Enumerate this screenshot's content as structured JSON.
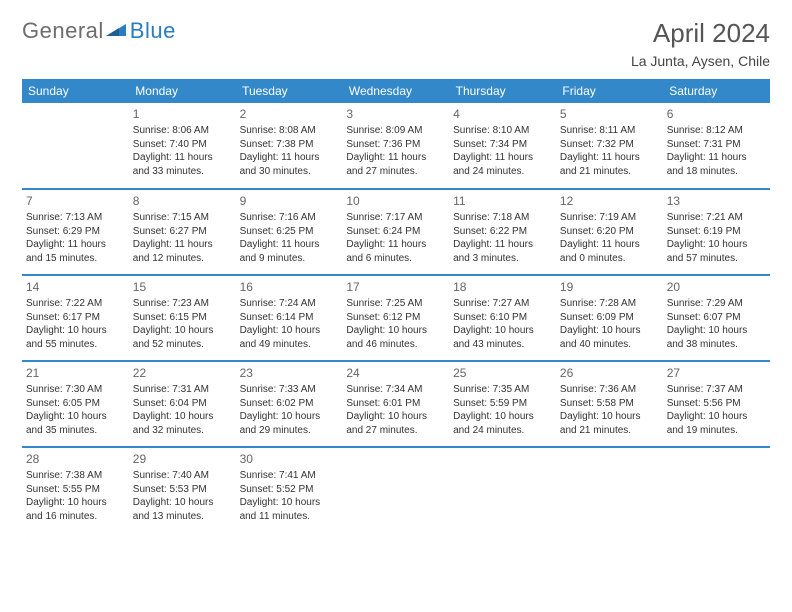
{
  "logo": {
    "general": "General",
    "blue": "Blue"
  },
  "title": "April 2024",
  "location": "La Junta, Aysen, Chile",
  "colors": {
    "header_bg": "#3288c9",
    "header_text": "#ffffff",
    "border": "#3288c9",
    "text": "#333333",
    "daynum": "#666666",
    "logo_gray": "#6d6d6d",
    "logo_blue": "#2a7dc0",
    "background": "#ffffff"
  },
  "weekdays": [
    "Sunday",
    "Monday",
    "Tuesday",
    "Wednesday",
    "Thursday",
    "Friday",
    "Saturday"
  ],
  "cells": [
    [
      {
        "day": "",
        "lines": []
      },
      {
        "day": "1",
        "lines": [
          "Sunrise: 8:06 AM",
          "Sunset: 7:40 PM",
          "Daylight: 11 hours and 33 minutes."
        ]
      },
      {
        "day": "2",
        "lines": [
          "Sunrise: 8:08 AM",
          "Sunset: 7:38 PM",
          "Daylight: 11 hours and 30 minutes."
        ]
      },
      {
        "day": "3",
        "lines": [
          "Sunrise: 8:09 AM",
          "Sunset: 7:36 PM",
          "Daylight: 11 hours and 27 minutes."
        ]
      },
      {
        "day": "4",
        "lines": [
          "Sunrise: 8:10 AM",
          "Sunset: 7:34 PM",
          "Daylight: 11 hours and 24 minutes."
        ]
      },
      {
        "day": "5",
        "lines": [
          "Sunrise: 8:11 AM",
          "Sunset: 7:32 PM",
          "Daylight: 11 hours and 21 minutes."
        ]
      },
      {
        "day": "6",
        "lines": [
          "Sunrise: 8:12 AM",
          "Sunset: 7:31 PM",
          "Daylight: 11 hours and 18 minutes."
        ]
      }
    ],
    [
      {
        "day": "7",
        "lines": [
          "Sunrise: 7:13 AM",
          "Sunset: 6:29 PM",
          "Daylight: 11 hours and 15 minutes."
        ]
      },
      {
        "day": "8",
        "lines": [
          "Sunrise: 7:15 AM",
          "Sunset: 6:27 PM",
          "Daylight: 11 hours and 12 minutes."
        ]
      },
      {
        "day": "9",
        "lines": [
          "Sunrise: 7:16 AM",
          "Sunset: 6:25 PM",
          "Daylight: 11 hours and 9 minutes."
        ]
      },
      {
        "day": "10",
        "lines": [
          "Sunrise: 7:17 AM",
          "Sunset: 6:24 PM",
          "Daylight: 11 hours and 6 minutes."
        ]
      },
      {
        "day": "11",
        "lines": [
          "Sunrise: 7:18 AM",
          "Sunset: 6:22 PM",
          "Daylight: 11 hours and 3 minutes."
        ]
      },
      {
        "day": "12",
        "lines": [
          "Sunrise: 7:19 AM",
          "Sunset: 6:20 PM",
          "Daylight: 11 hours and 0 minutes."
        ]
      },
      {
        "day": "13",
        "lines": [
          "Sunrise: 7:21 AM",
          "Sunset: 6:19 PM",
          "Daylight: 10 hours and 57 minutes."
        ]
      }
    ],
    [
      {
        "day": "14",
        "lines": [
          "Sunrise: 7:22 AM",
          "Sunset: 6:17 PM",
          "Daylight: 10 hours and 55 minutes."
        ]
      },
      {
        "day": "15",
        "lines": [
          "Sunrise: 7:23 AM",
          "Sunset: 6:15 PM",
          "Daylight: 10 hours and 52 minutes."
        ]
      },
      {
        "day": "16",
        "lines": [
          "Sunrise: 7:24 AM",
          "Sunset: 6:14 PM",
          "Daylight: 10 hours and 49 minutes."
        ]
      },
      {
        "day": "17",
        "lines": [
          "Sunrise: 7:25 AM",
          "Sunset: 6:12 PM",
          "Daylight: 10 hours and 46 minutes."
        ]
      },
      {
        "day": "18",
        "lines": [
          "Sunrise: 7:27 AM",
          "Sunset: 6:10 PM",
          "Daylight: 10 hours and 43 minutes."
        ]
      },
      {
        "day": "19",
        "lines": [
          "Sunrise: 7:28 AM",
          "Sunset: 6:09 PM",
          "Daylight: 10 hours and 40 minutes."
        ]
      },
      {
        "day": "20",
        "lines": [
          "Sunrise: 7:29 AM",
          "Sunset: 6:07 PM",
          "Daylight: 10 hours and 38 minutes."
        ]
      }
    ],
    [
      {
        "day": "21",
        "lines": [
          "Sunrise: 7:30 AM",
          "Sunset: 6:05 PM",
          "Daylight: 10 hours and 35 minutes."
        ]
      },
      {
        "day": "22",
        "lines": [
          "Sunrise: 7:31 AM",
          "Sunset: 6:04 PM",
          "Daylight: 10 hours and 32 minutes."
        ]
      },
      {
        "day": "23",
        "lines": [
          "Sunrise: 7:33 AM",
          "Sunset: 6:02 PM",
          "Daylight: 10 hours and 29 minutes."
        ]
      },
      {
        "day": "24",
        "lines": [
          "Sunrise: 7:34 AM",
          "Sunset: 6:01 PM",
          "Daylight: 10 hours and 27 minutes."
        ]
      },
      {
        "day": "25",
        "lines": [
          "Sunrise: 7:35 AM",
          "Sunset: 5:59 PM",
          "Daylight: 10 hours and 24 minutes."
        ]
      },
      {
        "day": "26",
        "lines": [
          "Sunrise: 7:36 AM",
          "Sunset: 5:58 PM",
          "Daylight: 10 hours and 21 minutes."
        ]
      },
      {
        "day": "27",
        "lines": [
          "Sunrise: 7:37 AM",
          "Sunset: 5:56 PM",
          "Daylight: 10 hours and 19 minutes."
        ]
      }
    ],
    [
      {
        "day": "28",
        "lines": [
          "Sunrise: 7:38 AM",
          "Sunset: 5:55 PM",
          "Daylight: 10 hours and 16 minutes."
        ]
      },
      {
        "day": "29",
        "lines": [
          "Sunrise: 7:40 AM",
          "Sunset: 5:53 PM",
          "Daylight: 10 hours and 13 minutes."
        ]
      },
      {
        "day": "30",
        "lines": [
          "Sunrise: 7:41 AM",
          "Sunset: 5:52 PM",
          "Daylight: 10 hours and 11 minutes."
        ]
      },
      {
        "day": "",
        "lines": []
      },
      {
        "day": "",
        "lines": []
      },
      {
        "day": "",
        "lines": []
      },
      {
        "day": "",
        "lines": []
      }
    ]
  ]
}
